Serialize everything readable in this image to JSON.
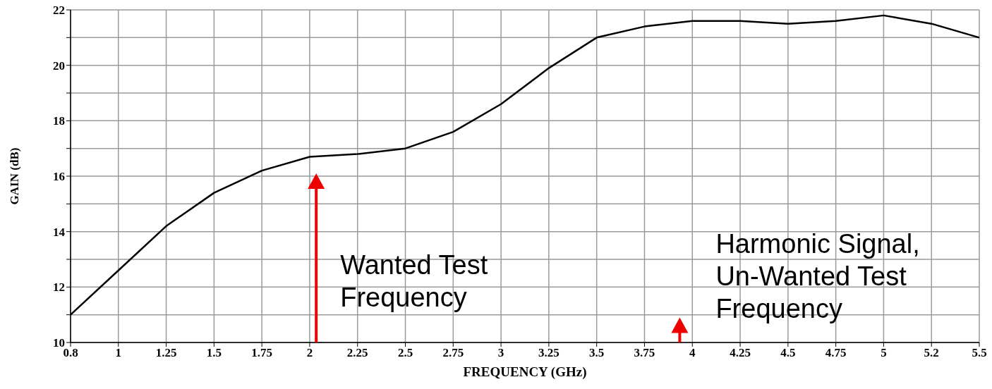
{
  "chart_data": {
    "type": "line",
    "xlabel": "FREQUENCY (GHz)",
    "ylabel": "GAIN (dB)",
    "categories": [
      "0.8",
      "1",
      "1.25",
      "1.5",
      "1.75",
      "2",
      "2.25",
      "2.5",
      "2.75",
      "3",
      "3.25",
      "3.5",
      "3.75",
      "4",
      "4.25",
      "4.5",
      "4.75",
      "5",
      "5.2",
      "5.5"
    ],
    "series": [
      {
        "color": "#000000",
        "values": [
          11,
          12.6,
          14.2,
          15.4,
          16.2,
          16.7,
          16.8,
          17.0,
          17.6,
          18.6,
          19.9,
          21.0,
          21.4,
          21.6,
          21.6,
          21.5,
          21.6,
          21.8,
          21.5,
          21.0
        ]
      }
    ],
    "ylim": [
      10,
      22
    ],
    "yticks": [
      10,
      {
        "value": 11,
        "label": null
      },
      12,
      {
        "value": 13,
        "label": null
      },
      14,
      {
        "value": 15,
        "label": null
      },
      16,
      {
        "value": 17,
        "label": null
      },
      18,
      {
        "value": 19,
        "label": null
      },
      20,
      {
        "value": 21,
        "label": null
      },
      22
    ],
    "grid": true,
    "marker": "none",
    "line_style": "solid",
    "annotations": [
      "Wanted Test Frequency",
      "Harmonic Signal, Un-Wanted Test Frequency"
    ]
  }
}
